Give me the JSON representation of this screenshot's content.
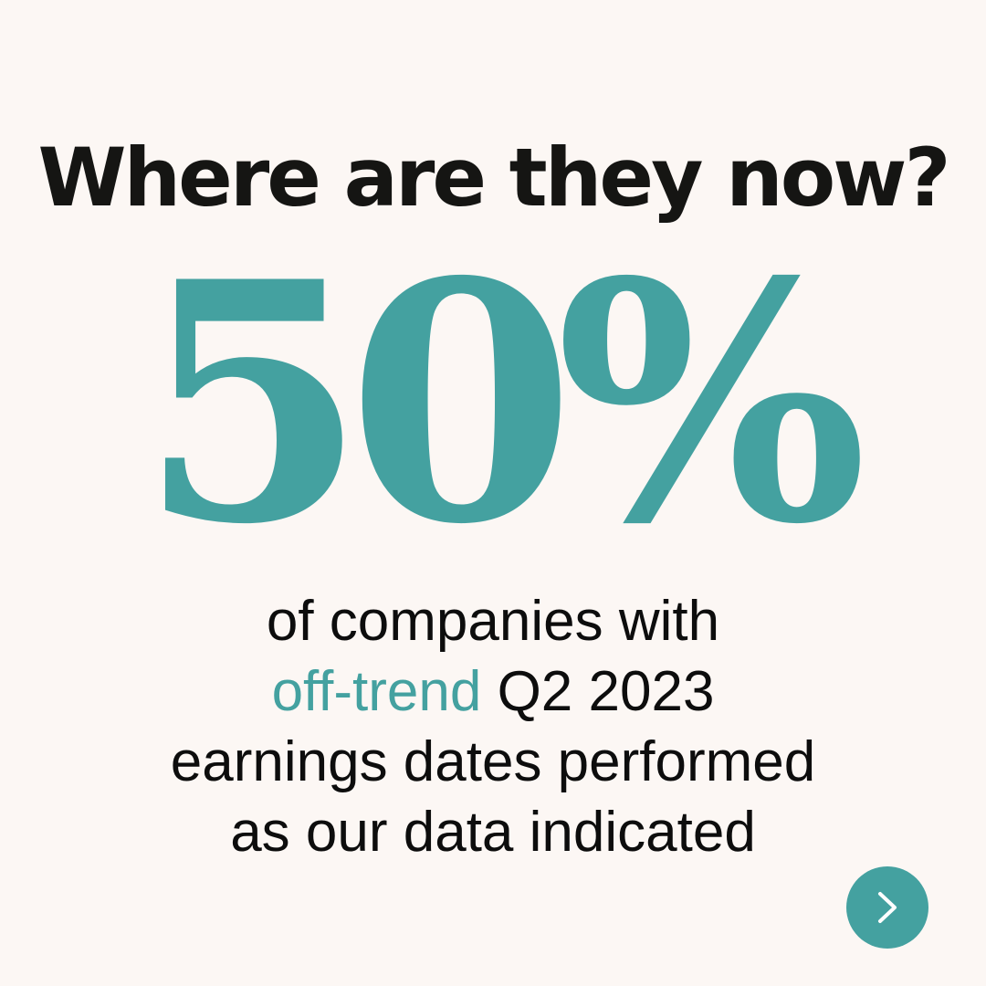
{
  "headline": "Where are they now?",
  "stat": {
    "value": "50%",
    "caption_line1": "of companies with",
    "caption_accent": "off-trend",
    "caption_line2_rest": " Q2 2023",
    "caption_line3": "earnings dates performed",
    "caption_line4": "as our data indicated"
  },
  "colors": {
    "background": "#fcf7f4",
    "accent": "#44a1a0",
    "text": "#151513"
  },
  "nav": {
    "next_icon": "chevron-right-icon"
  }
}
